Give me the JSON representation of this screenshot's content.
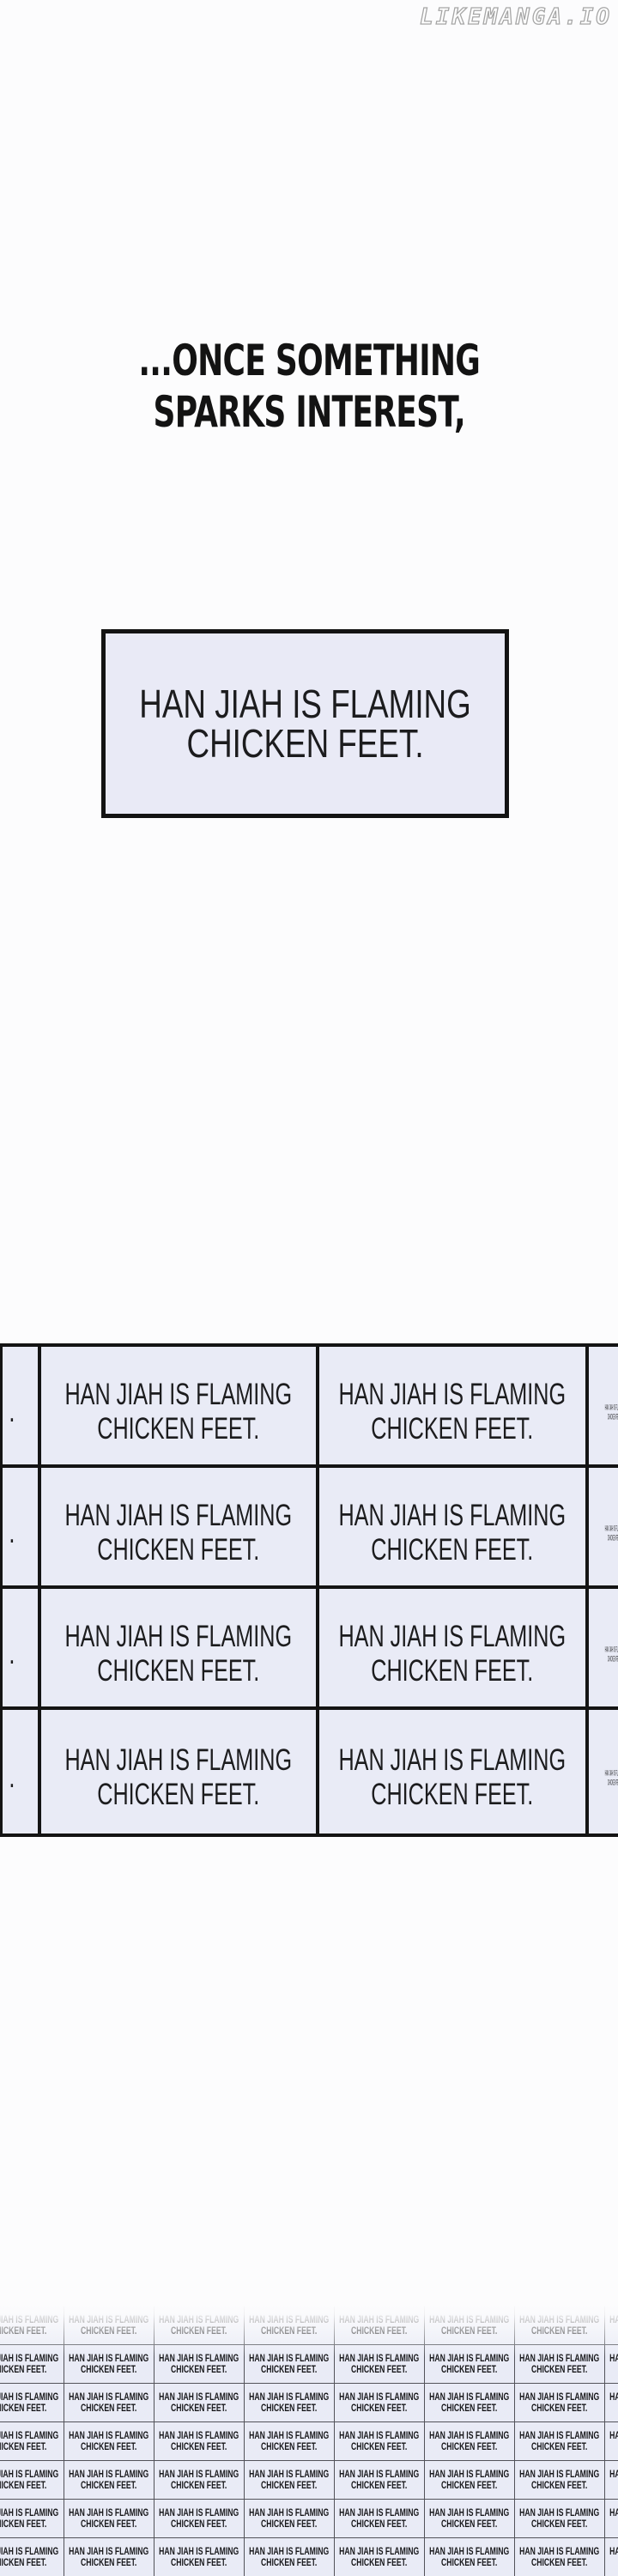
{
  "watermark": {
    "text": "LIKEMANGA.IO"
  },
  "narration": {
    "line1": "...ONCE SOMETHING",
    "line2": "SPARKS INTEREST,"
  },
  "caption_box": {
    "line1": "HAN JIAH IS FLAMING",
    "line2": "CHICKEN FEET."
  },
  "cell_text": {
    "line1": "HAN JIAH IS FLAMING",
    "line2": "CHICKEN FEET."
  },
  "panel_grid": {
    "rows": 4,
    "left_sliver": {
      "line1": "",
      "line2": "."
    }
  },
  "micro_grid": {
    "rows": 7,
    "cols": 8
  },
  "colors": {
    "page_bg": "#fcfcfd",
    "cell_bg": "#e9ebf6",
    "panel_border": "#141414",
    "micro_border": "#53535a",
    "text": "#1c1c1e",
    "watermark_outline": "#a6a6a6"
  }
}
